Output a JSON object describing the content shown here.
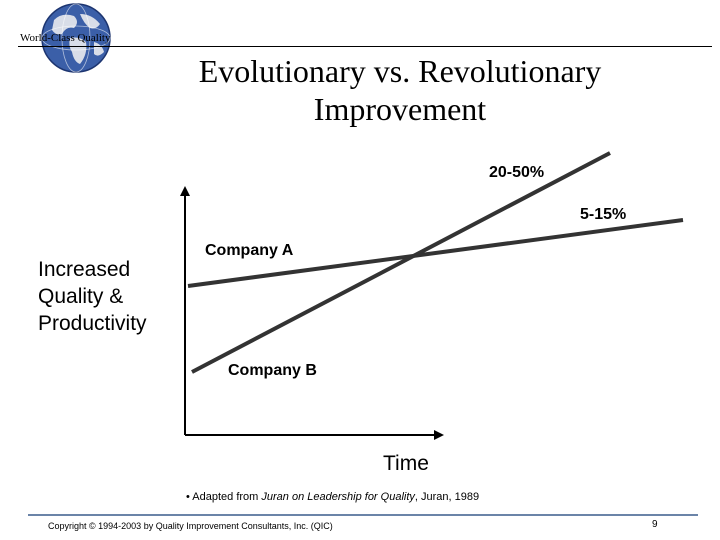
{
  "header": {
    "brand": "World-Class Quality",
    "title_line1": "Evolutionary vs. Revolutionary",
    "title_line2": "Improvement"
  },
  "diagram": {
    "y_axis_label": [
      "Increased",
      "Quality &",
      "Productivity"
    ],
    "x_axis_label": "Time",
    "company_a_label": "Company A",
    "company_b_label": "Company B",
    "company_b_rate": "20-50%",
    "company_a_rate": "5-15%"
  },
  "source": {
    "prefix": "• Adapted from ",
    "book": "Juran on Leadership for Quality",
    "suffix": ", Juran, 1989"
  },
  "footer": {
    "copyright": "Copyright © 1994-2003 by Quality Improvement Consultants, Inc. (QIC)",
    "page_number": "9"
  },
  "colors": {
    "footer_rule": "#6b84a8",
    "globe_ocean": "#3b5fa8",
    "globe_land": "#d8dde8"
  }
}
